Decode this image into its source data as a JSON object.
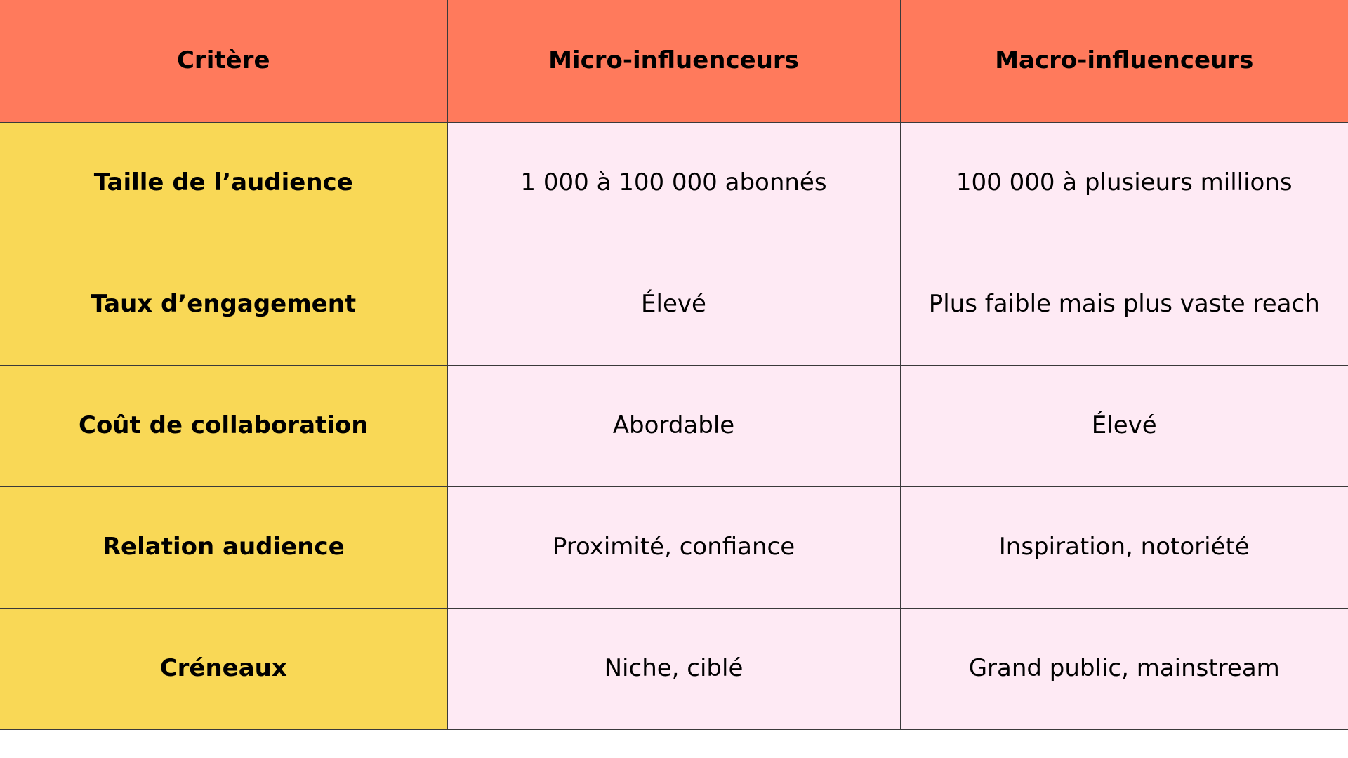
{
  "table": {
    "headers": [
      "Critère",
      "Micro-influenceurs",
      "Macro-influenceurs"
    ],
    "rows": [
      {
        "criterion": "Taille de l’audience",
        "micro": "1 000 à 100 000 abonnés",
        "macro": "100 000 à plusieurs millions"
      },
      {
        "criterion": "Taux d’engagement",
        "micro": "Élevé",
        "macro": "Plus faible mais plus vaste reach"
      },
      {
        "criterion": "Coût de collaboration",
        "micro": "Abordable",
        "macro": "Élevé"
      },
      {
        "criterion": "Relation audience",
        "micro": "Proximité, confiance",
        "macro": "Inspiration, notoriété"
      },
      {
        "criterion": "Créneaux",
        "micro": "Niche, ciblé",
        "macro": "Grand public, mainstream"
      }
    ]
  },
  "colors": {
    "header_bg": "#ff7a5c",
    "criteria_bg": "#f9d856",
    "cell_bg": "#feeaf4",
    "border": "#3a3a3a"
  }
}
